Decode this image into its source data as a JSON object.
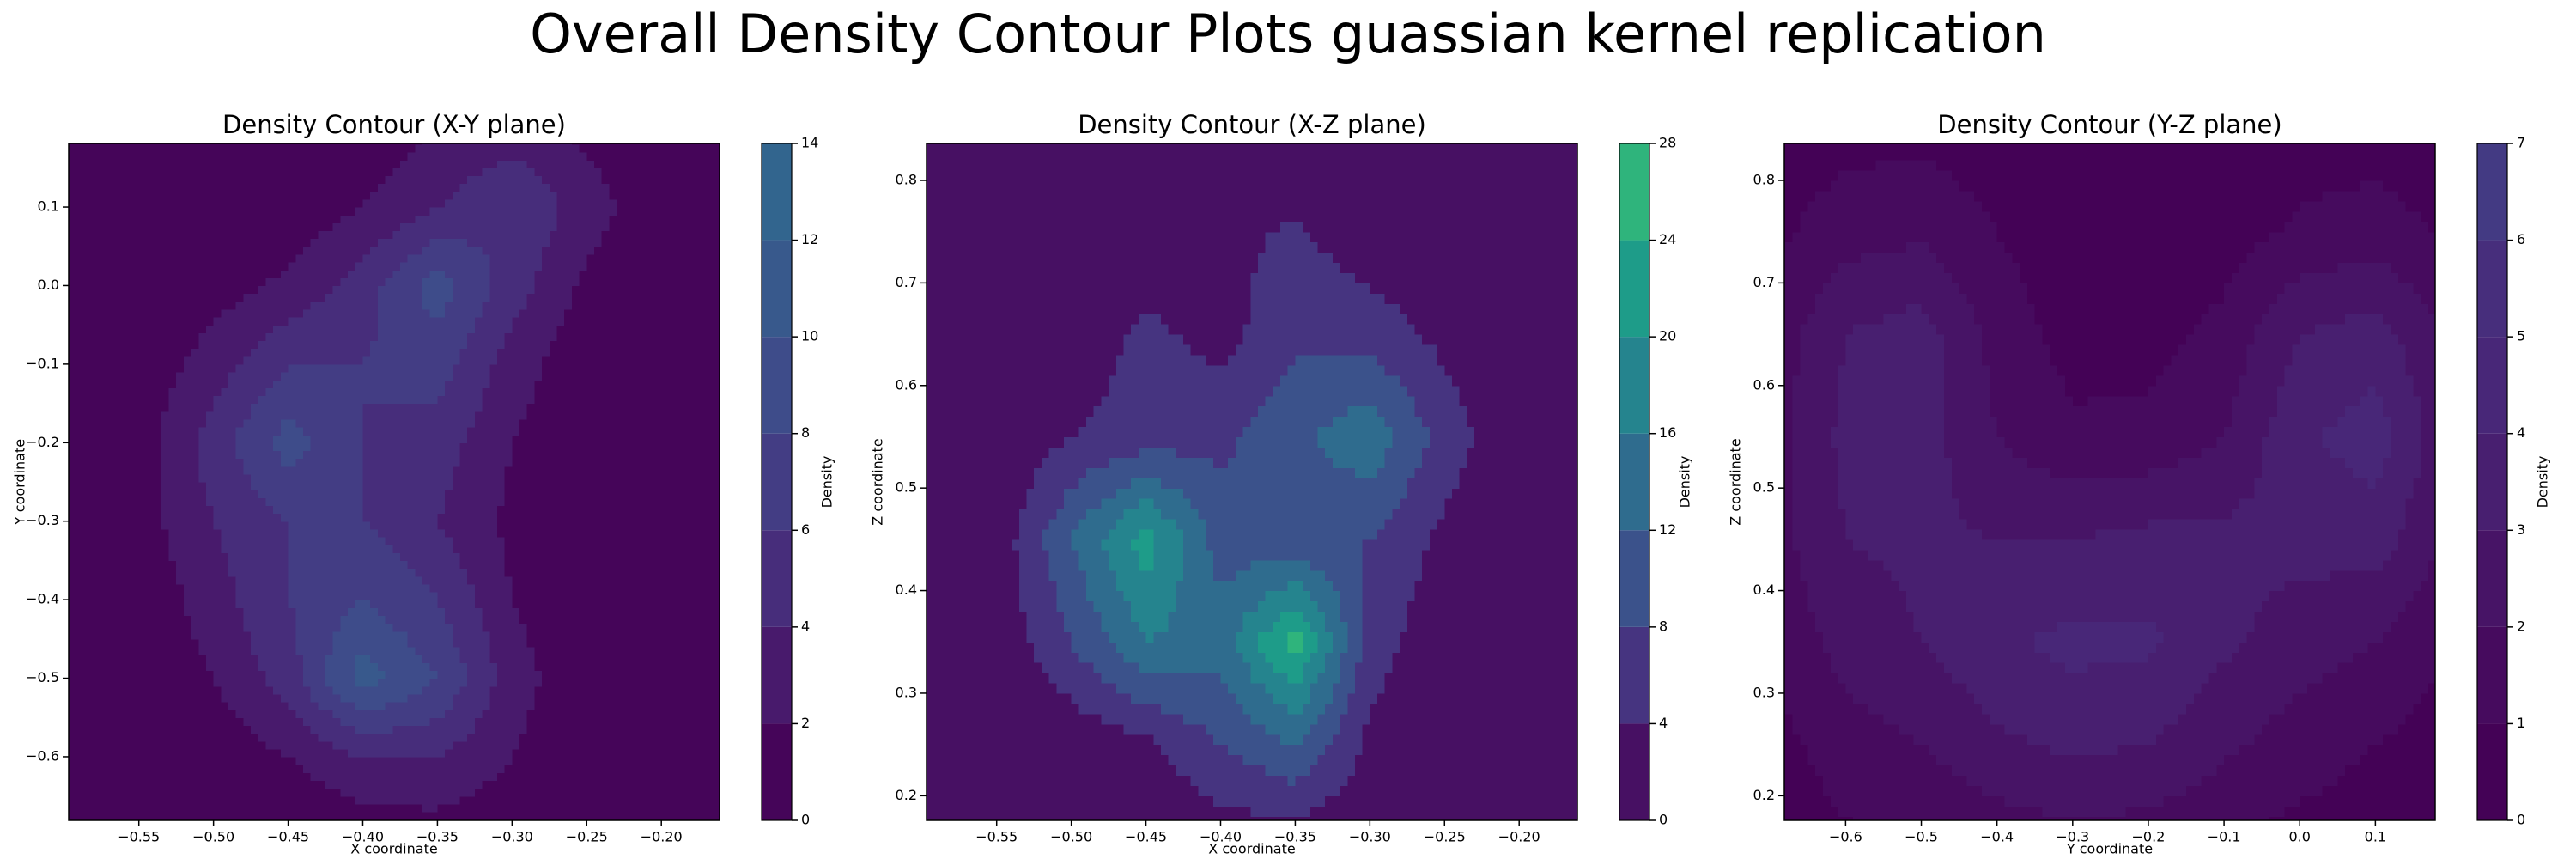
{
  "title": "Overall Density Contour Plots guassian kernel replication",
  "chart_data": [
    {
      "type": "contour",
      "title": "Density Contour (X-Y plane)",
      "xlabel": "X coordinate",
      "ylabel": "Y coordinate",
      "colorbar_label": "Density",
      "x": [
        -0.6,
        -0.55,
        -0.5,
        -0.45,
        -0.4,
        -0.35,
        -0.3,
        -0.25,
        -0.2,
        -0.15
      ],
      "y": [
        -0.7,
        -0.6,
        -0.5,
        -0.4,
        -0.3,
        -0.2,
        -0.1,
        0.0,
        0.1,
        0.2
      ],
      "z": [
        [
          0,
          0,
          0,
          0,
          0.5,
          1,
          0.5,
          0,
          0,
          0
        ],
        [
          0,
          0,
          0.5,
          2,
          4,
          4,
          2,
          0,
          0,
          0
        ],
        [
          0,
          0.3,
          2,
          5,
          11,
          8,
          3,
          0.3,
          0,
          0
        ],
        [
          0,
          0.5,
          3,
          6,
          8,
          6,
          2,
          0.2,
          0,
          0
        ],
        [
          0,
          1,
          4,
          6,
          6,
          4,
          1.5,
          0,
          0,
          0
        ],
        [
          0,
          1,
          5,
          9,
          6,
          5,
          2,
          0.3,
          0,
          0
        ],
        [
          0,
          0.5,
          3,
          6,
          6,
          7,
          3,
          0.5,
          0,
          0
        ],
        [
          0,
          0,
          1,
          2.5,
          5,
          9,
          5,
          1.5,
          0,
          0
        ],
        [
          0,
          0,
          0,
          0.5,
          2,
          4,
          6,
          3,
          0.3,
          0
        ],
        [
          0,
          0,
          0,
          0,
          0.5,
          2,
          3,
          1.5,
          0,
          0
        ]
      ],
      "levels": [
        0,
        2,
        4,
        6,
        8,
        10,
        12,
        14
      ],
      "colors": [
        "#450559",
        "#481a6c",
        "#472d7b",
        "#433d84",
        "#3e4c8a",
        "#38598c",
        "#32658e"
      ],
      "xlim": [
        -0.597,
        -0.161
      ],
      "ylim": [
        -0.681,
        0.181
      ],
      "xticks": [
        {
          "value": -0.55,
          "label": "−0.55"
        },
        {
          "value": -0.5,
          "label": "−0.50"
        },
        {
          "value": -0.45,
          "label": "−0.45"
        },
        {
          "value": -0.4,
          "label": "−0.40"
        },
        {
          "value": -0.35,
          "label": "−0.35"
        },
        {
          "value": -0.3,
          "label": "−0.30"
        },
        {
          "value": -0.25,
          "label": "−0.25"
        },
        {
          "value": -0.2,
          "label": "−0.20"
        }
      ],
      "yticks": [
        {
          "value": -0.6,
          "label": "−0.6"
        },
        {
          "value": -0.5,
          "label": "−0.5"
        },
        {
          "value": -0.4,
          "label": "−0.4"
        },
        {
          "value": -0.3,
          "label": "−0.3"
        },
        {
          "value": -0.2,
          "label": "−0.2"
        },
        {
          "value": -0.1,
          "label": "−0.1"
        },
        {
          "value": 0,
          "label": "0.0"
        },
        0.1
      ]
    },
    {
      "type": "contour",
      "title": "Density Contour (X-Z plane)",
      "xlabel": "X coordinate",
      "ylabel": "Z coordinate",
      "colorbar_label": "Density",
      "x": [
        -0.6,
        -0.55,
        -0.5,
        -0.45,
        -0.4,
        -0.35,
        -0.3,
        -0.25,
        -0.2,
        -0.15
      ],
      "y": [
        0.15,
        0.25,
        0.35,
        0.45,
        0.55,
        0.65,
        0.75,
        0.85
      ],
      "z": [
        [
          0,
          0,
          0,
          0,
          1,
          1,
          0,
          0,
          0,
          0
        ],
        [
          0,
          0,
          1,
          3,
          8,
          12,
          3,
          0.5,
          0,
          0
        ],
        [
          0,
          1,
          8,
          16,
          14,
          26,
          6,
          1,
          0,
          0
        ],
        [
          0,
          1.5,
          12,
          22,
          10,
          9,
          8,
          3,
          0.5,
          0
        ],
        [
          0,
          0.5,
          4,
          6,
          7,
          11,
          15,
          6,
          1,
          0
        ],
        [
          0,
          0,
          1,
          5,
          2.5,
          7,
          6,
          3,
          0.5,
          0
        ],
        [
          0,
          0,
          0,
          0.5,
          3,
          4.5,
          1.5,
          0.5,
          0,
          0
        ],
        [
          0,
          0,
          0,
          0,
          0,
          0,
          0,
          0,
          0,
          0
        ]
      ],
      "levels": [
        0,
        4,
        8,
        12,
        16,
        20,
        24,
        28
      ],
      "colors": [
        "#471063",
        "#463480",
        "#3b528b",
        "#2f6c8e",
        "#25848e",
        "#1e9c89",
        "#2fb47c"
      ],
      "xlim": [
        -0.597,
        -0.161
      ],
      "ylim": [
        0.176,
        0.836
      ],
      "xticks": [
        {
          "value": -0.55,
          "label": "−0.55"
        },
        {
          "value": -0.5,
          "label": "−0.50"
        },
        {
          "value": -0.45,
          "label": "−0.45"
        },
        {
          "value": -0.4,
          "label": "−0.40"
        },
        {
          "value": -0.35,
          "label": "−0.35"
        },
        {
          "value": -0.3,
          "label": "−0.30"
        },
        {
          "value": -0.25,
          "label": "−0.25"
        },
        {
          "value": -0.2,
          "label": "−0.20"
        }
      ],
      "yticks": [
        0.2,
        0.3,
        0.4,
        0.5,
        0.6,
        0.7,
        0.8
      ]
    },
    {
      "type": "contour",
      "title": "Density Contour (Y-Z plane)",
      "xlabel": "Y coordinate",
      "ylabel": "Z coordinate",
      "colorbar_label": "Density",
      "x": [
        -0.7,
        -0.6,
        -0.5,
        -0.4,
        -0.3,
        -0.2,
        -0.1,
        0.0,
        0.1,
        0.2
      ],
      "y": [
        0.15,
        0.25,
        0.35,
        0.45,
        0.55,
        0.65,
        0.75,
        0.85
      ],
      "z": [
        [
          0.3,
          0.8,
          1,
          1.3,
          1.5,
          1.4,
          1,
          0.6,
          0.4,
          0.2
        ],
        [
          0.6,
          1.5,
          2,
          2.8,
          3.2,
          3,
          2.2,
          1.5,
          1,
          0.5
        ],
        [
          1,
          2.5,
          3,
          3.8,
          4.3,
          4.2,
          3.2,
          2.5,
          2,
          1
        ],
        [
          1.5,
          3,
          3.2,
          3,
          3,
          3.3,
          3.3,
          3.3,
          3.5,
          1.8
        ],
        [
          1.5,
          3.3,
          3.5,
          2,
          1.2,
          1.3,
          2,
          3.8,
          4.5,
          2.2
        ],
        [
          1.3,
          3,
          3.5,
          1.6,
          0.6,
          0.6,
          1.3,
          3,
          3.5,
          1.8
        ],
        [
          0.7,
          1.6,
          1.8,
          1,
          0.3,
          0.2,
          0.5,
          1.2,
          1.5,
          0.8
        ],
        [
          0.3,
          0.6,
          0.7,
          0.4,
          0.1,
          0,
          0.2,
          0.4,
          0.5,
          0.3
        ]
      ],
      "levels": [
        0,
        1,
        2,
        3,
        4,
        5,
        6,
        7
      ],
      "colors": [
        "#440256",
        "#460b5e",
        "#471466",
        "#481f70",
        "#482778",
        "#472e7c",
        "#433a83"
      ],
      "xlim": [
        -0.681,
        0.179
      ],
      "ylim": [
        0.176,
        0.836
      ],
      "xticks": [
        {
          "value": -0.6,
          "label": "−0.6"
        },
        {
          "value": -0.5,
          "label": "−0.5"
        },
        {
          "value": -0.4,
          "label": "−0.4"
        },
        {
          "value": -0.3,
          "label": "−0.3"
        },
        {
          "value": -0.2,
          "label": "−0.2"
        },
        {
          "value": -0.1,
          "label": "−0.1"
        },
        {
          "value": 0,
          "label": "0.0"
        },
        0.1
      ],
      "yticks": [
        0.2,
        0.3,
        0.4,
        0.5,
        0.6,
        0.7,
        0.8
      ]
    }
  ]
}
